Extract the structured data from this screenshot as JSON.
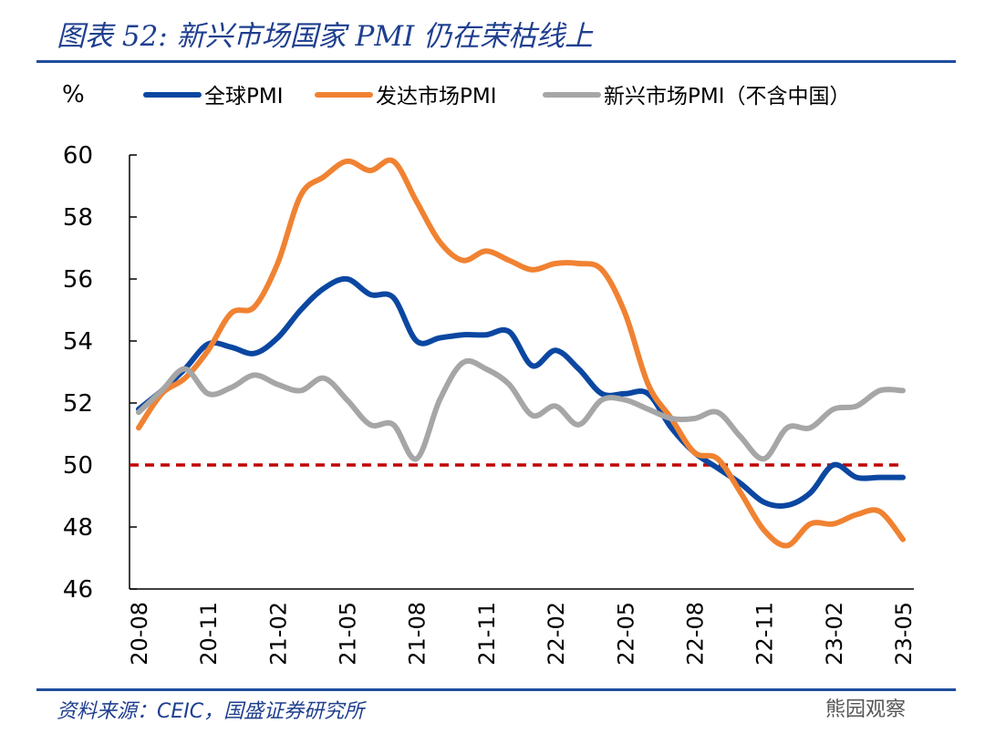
{
  "title": "图表 52: 新兴市场国家 PMI 仍在荣枯线上",
  "source": "资料来源：CEIC，国盛证券研究所",
  "watermark": "熊园观察",
  "chart_data": {
    "type": "line",
    "ylabel": "%",
    "ylim": [
      46,
      60
    ],
    "yticks": [
      46,
      48,
      50,
      52,
      54,
      56,
      58,
      60
    ],
    "x": [
      "20-08",
      "20-09",
      "20-10",
      "20-11",
      "20-12",
      "21-01",
      "21-02",
      "21-03",
      "21-04",
      "21-05",
      "21-06",
      "21-07",
      "21-08",
      "21-09",
      "21-10",
      "21-11",
      "21-12",
      "22-01",
      "22-02",
      "22-03",
      "22-04",
      "22-05",
      "22-06",
      "22-07",
      "22-08",
      "22-09",
      "22-10",
      "22-11",
      "22-12",
      "23-01",
      "23-02",
      "23-03",
      "23-04",
      "23-05"
    ],
    "xticks": [
      "20-08",
      "20-11",
      "21-02",
      "21-05",
      "21-08",
      "21-11",
      "22-02",
      "22-05",
      "22-08",
      "22-11",
      "23-02",
      "23-05"
    ],
    "legend": "top",
    "reference_line": {
      "value": 50,
      "color": "#c00000",
      "style": "dashed"
    },
    "series": [
      {
        "name": "全球PMI",
        "color": "#0b47a1",
        "values": [
          51.8,
          52.4,
          53.1,
          53.9,
          53.8,
          53.6,
          54.1,
          55.0,
          55.7,
          56.0,
          55.5,
          55.4,
          54.0,
          54.1,
          54.2,
          54.2,
          54.3,
          53.2,
          53.7,
          53.1,
          52.3,
          52.3,
          52.3,
          51.2,
          50.4,
          49.9,
          49.4,
          48.8,
          48.7,
          49.1,
          50.0,
          49.6,
          49.6,
          49.6
        ]
      },
      {
        "name": "发达市场PMI",
        "color": "#f08232",
        "values": [
          51.2,
          52.3,
          52.8,
          53.7,
          54.9,
          55.1,
          56.5,
          58.7,
          59.3,
          59.8,
          59.5,
          59.8,
          58.5,
          57.2,
          56.6,
          56.9,
          56.6,
          56.3,
          56.5,
          56.5,
          56.3,
          54.9,
          52.6,
          51.5,
          50.4,
          50.2,
          49.1,
          47.9,
          47.4,
          48.1,
          48.1,
          48.4,
          48.5,
          47.6
        ]
      },
      {
        "name": "新兴市场PMI（不含中国）",
        "color": "#a6a6a6",
        "values": [
          51.7,
          52.4,
          53.1,
          52.3,
          52.5,
          52.9,
          52.6,
          52.4,
          52.8,
          52.1,
          51.3,
          51.3,
          50.2,
          52.1,
          53.3,
          53.1,
          52.6,
          51.6,
          51.9,
          51.3,
          52.1,
          52.1,
          51.8,
          51.5,
          51.5,
          51.7,
          50.9,
          50.2,
          51.2,
          51.2,
          51.8,
          51.9,
          52.4,
          52.4
        ]
      }
    ]
  }
}
